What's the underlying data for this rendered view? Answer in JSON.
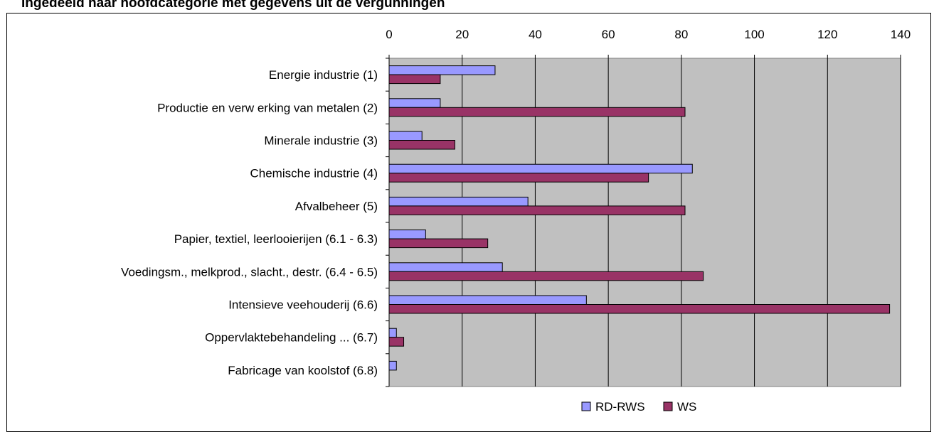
{
  "chart_data": {
    "type": "bar",
    "orientation": "horizontal",
    "title": "Ingedeeld naar hoofdcategorie met gegevens uit de vergunningen",
    "categories": [
      "Energie industrie (1)",
      "Productie en verw erking van metalen (2)",
      "Minerale industrie (3)",
      "Chemische industrie (4)",
      "Afvalbeheer (5)",
      "Papier, textiel, leerlooierijen (6.1 - 6.3)",
      "Voedingsm., melkprod., slacht., destr. (6.4 - 6.5)",
      "Intensieve veehouderij (6.6)",
      "Oppervlaktebehandeling ... (6.7)",
      "Fabricage van koolstof  (6.8)"
    ],
    "series": [
      {
        "name": "RD-RWS",
        "color": "#9999ff",
        "values": [
          29,
          14,
          9,
          83,
          38,
          10,
          31,
          54,
          2,
          2
        ]
      },
      {
        "name": "WS",
        "color": "#993366",
        "values": [
          14,
          81,
          18,
          71,
          81,
          27,
          86,
          137,
          4,
          0
        ]
      }
    ],
    "xlim": [
      0,
      140
    ],
    "xticks": [
      "0",
      "20",
      "40",
      "60",
      "80",
      "100",
      "120",
      "140"
    ],
    "grid": true,
    "plot_background": "#c0c0c0",
    "legend": "bottom-center"
  }
}
